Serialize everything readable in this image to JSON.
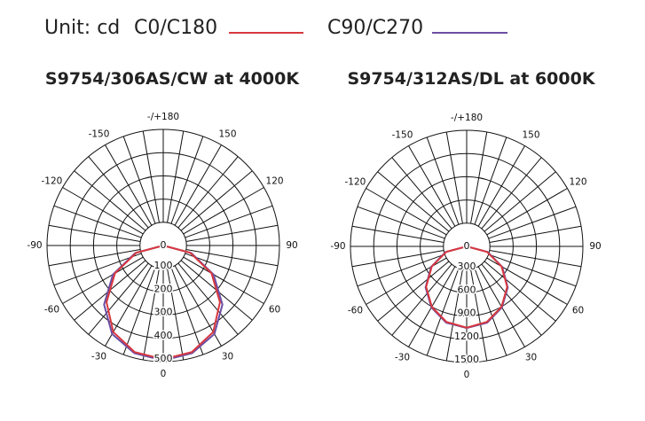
{
  "legend": {
    "unit": "Unit: cd"
  },
  "chart_data": [
    {
      "type": "polar",
      "title": "S9754/306AS/CW at 4000K",
      "theta": [
        -90,
        -75,
        -60,
        -45,
        -30,
        -15,
        0,
        15,
        30,
        45,
        60,
        75,
        90
      ],
      "series": [
        {
          "name": "C0/C180",
          "color": "#d8383f",
          "values": [
            0,
            120,
            240,
            345,
            430,
            475,
            490,
            475,
            430,
            345,
            240,
            120,
            0
          ]
        },
        {
          "name": "C90/C270",
          "color": "#6b4ea3",
          "values": [
            0,
            125,
            250,
            360,
            440,
            480,
            495,
            480,
            440,
            360,
            250,
            125,
            0
          ]
        }
      ],
      "rlim": [
        0,
        500
      ],
      "rticks": [
        0,
        100,
        200,
        300,
        400,
        500
      ],
      "angle_ticks": [
        {
          "value": 180,
          "label": "-/+180"
        },
        -150,
        -120,
        -90,
        -60,
        -30,
        0,
        30,
        60,
        90,
        120,
        150
      ]
    },
    {
      "type": "polar",
      "title": "S9754/312AS/DL at 6000K",
      "theta": [
        -90,
        -75,
        -60,
        -45,
        -30,
        -15,
        0,
        15,
        30,
        45,
        60,
        75,
        90
      ],
      "series": [
        {
          "name": "C0/C180",
          "color": "#d8383f",
          "values": [
            0,
            270,
            520,
            740,
            900,
            1010,
            1050,
            1010,
            900,
            740,
            520,
            270,
            0
          ]
        },
        {
          "name": "C90/C270",
          "color": "#6b4ea3",
          "values": [
            0,
            280,
            530,
            750,
            910,
            1020,
            1055,
            1020,
            910,
            750,
            530,
            280,
            0
          ]
        }
      ],
      "rlim": [
        0,
        1500
      ],
      "rticks": [
        0,
        300,
        600,
        900,
        1200,
        1500
      ],
      "angle_ticks": [
        {
          "value": 180,
          "label": "-/+180"
        },
        -150,
        -120,
        -90,
        -60,
        -30,
        0,
        30,
        60,
        90,
        120,
        150
      ]
    }
  ]
}
